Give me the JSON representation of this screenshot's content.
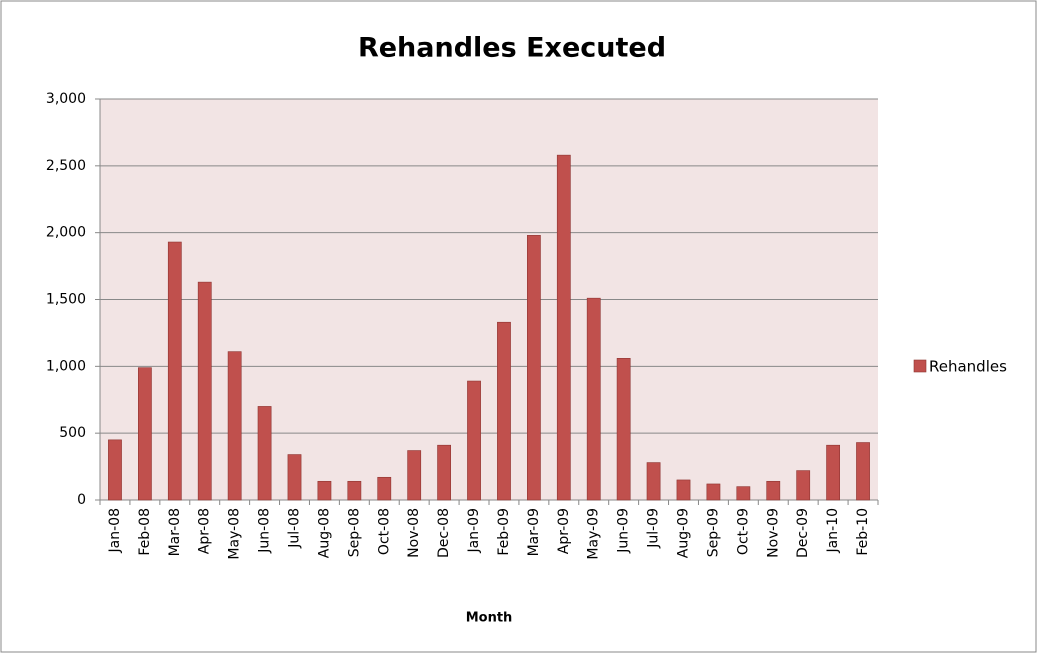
{
  "chart_data": {
    "type": "bar",
    "title": "Rehandles Executed",
    "x_label": "Month",
    "categories": [
      "Jan-08",
      "Feb-08",
      "Mar-08",
      "Apr-08",
      "May-08",
      "Jun-08",
      "Jul-08",
      "Aug-08",
      "Sep-08",
      "Oct-08",
      "Nov-08",
      "Dec-08",
      "Jan-09",
      "Feb-09",
      "Mar-09",
      "Apr-09",
      "May-09",
      "Jun-09",
      "Jul-09",
      "Aug-09",
      "Sep-09",
      "Oct-09",
      "Nov-09",
      "Dec-09",
      "Jan-10",
      "Feb-10"
    ],
    "series": [
      {
        "name": "Rehandles",
        "color": "#c0504d",
        "values": [
          450,
          990,
          1930,
          1630,
          1110,
          700,
          340,
          140,
          140,
          170,
          370,
          410,
          890,
          1330,
          1980,
          2580,
          1510,
          1060,
          280,
          150,
          120,
          100,
          140,
          220,
          410,
          430
        ]
      }
    ],
    "ylim": [
      0,
      3000
    ],
    "yticks": [
      0,
      500,
      {
        "value": 1000,
        "label": "1,000"
      },
      {
        "value": 1500,
        "label": "1,500"
      },
      {
        "value": 2000,
        "label": "2,000"
      },
      {
        "value": 2500,
        "label": "2,500"
      },
      {
        "value": 3000,
        "label": "3,000"
      }
    ],
    "grid": true,
    "legend": "right"
  }
}
